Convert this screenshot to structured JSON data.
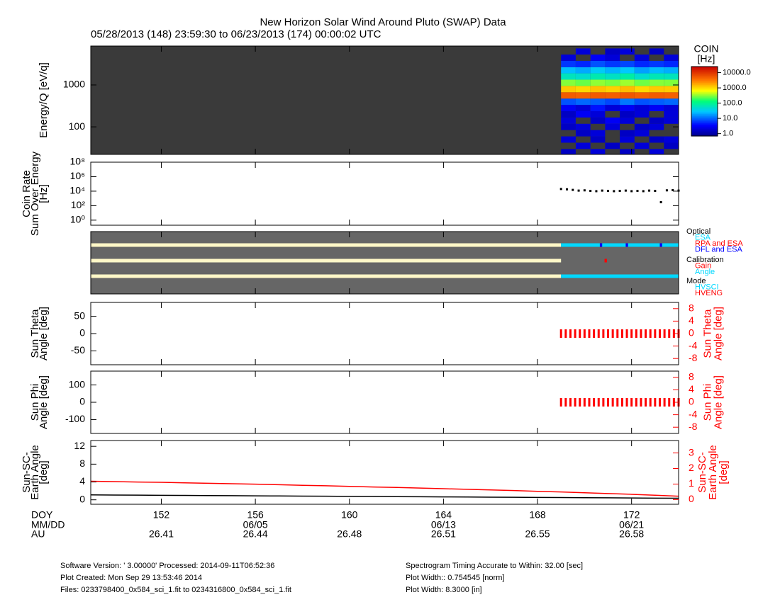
{
  "title": "New Horizon Solar Wind Around Pluto (SWAP) Data",
  "subtitle": "05/28/2013 (148) 23:59:30 to 06/23/2013 (174) 00:00:02 UTC",
  "x_axis": {
    "xlim": [
      149,
      174
    ],
    "xticks": [
      152,
      156,
      160,
      164,
      168,
      172
    ],
    "row_names": [
      "DOY",
      "MM/DD",
      "AU"
    ],
    "dates": [
      null,
      "06/05",
      null,
      "06/13",
      null,
      "06/21"
    ],
    "au": [
      26.41,
      26.44,
      26.48,
      26.51,
      26.55,
      26.58
    ]
  },
  "chart_data": [
    {
      "type": "heatmap",
      "ylabel": [
        "Energy/Q [eV/q]"
      ],
      "ylog": true,
      "ylim": [
        22,
        8500
      ],
      "yticks": [
        100,
        1000
      ],
      "background": "#3a3a3a",
      "x_edges": [
        169,
        169.625,
        170.25,
        170.875,
        171.5,
        172.125,
        172.75,
        173.375,
        174
      ],
      "y": [
        25,
        35,
        50,
        70,
        100,
        140,
        200,
        280,
        400,
        560,
        800,
        1120,
        1600,
        2240,
        3150,
        4500,
        6300
      ],
      "z": [
        [
          1.5,
          null,
          2,
          null,
          1.5,
          2,
          1.5,
          3,
          8,
          5000,
          1200,
          300,
          60,
          25,
          6,
          2,
          null
        ],
        [
          null,
          2,
          null,
          1.5,
          2,
          null,
          3,
          2,
          10,
          4500,
          1000,
          250,
          50,
          20,
          5,
          null,
          2
        ],
        [
          2,
          null,
          1.5,
          2,
          null,
          1.5,
          2,
          4,
          9,
          5200,
          1300,
          320,
          70,
          30,
          8,
          3,
          null
        ],
        [
          null,
          1.5,
          null,
          null,
          2,
          3,
          null,
          2,
          7,
          4800,
          1100,
          280,
          55,
          22,
          6,
          2,
          1.5
        ],
        [
          1.5,
          null,
          2,
          1.5,
          null,
          2,
          1.5,
          3,
          12,
          5500,
          1400,
          350,
          80,
          28,
          7,
          null,
          2
        ],
        [
          null,
          2,
          null,
          2,
          1.5,
          null,
          2,
          2,
          8,
          4700,
          1000,
          260,
          50,
          18,
          5,
          2,
          null
        ],
        [
          2,
          null,
          1.5,
          null,
          2,
          1.5,
          null,
          3,
          9,
          5000,
          1200,
          300,
          65,
          24,
          6,
          null,
          1.5
        ],
        [
          null,
          1.5,
          2,
          null,
          null,
          2,
          2,
          2,
          10,
          4600,
          1150,
          290,
          60,
          21,
          5,
          2,
          null
        ]
      ],
      "colorbar": {
        "title": "COIN",
        "unit": "[Hz]",
        "zlim": [
          0.7,
          25000
        ],
        "ticks": [
          {
            "value": 1,
            "label": "1.0"
          },
          {
            "value": 10,
            "label": "10.0"
          },
          {
            "value": 100,
            "label": "100.0"
          },
          {
            "value": 1000,
            "label": "1000.0"
          },
          {
            "value": 10000,
            "label": "10000.0"
          }
        ]
      }
    },
    {
      "type": "scatter",
      "ylabel": [
        "Coin Rate",
        "Sum Over Energy",
        "[Hz]"
      ],
      "ylog": true,
      "ylim": [
        0.2,
        100000000
      ],
      "yticks": [
        {
          "value": 1,
          "label": "10⁰"
        },
        {
          "value": 100,
          "label": "10²"
        },
        {
          "value": 10000,
          "label": "10⁴"
        },
        {
          "value": 1000000,
          "label": "10⁶"
        },
        {
          "value": 100000000,
          "label": "10⁸"
        }
      ],
      "series": [
        {
          "color": "#000000",
          "x": [
            169,
            169.25,
            169.5,
            169.75,
            170,
            170.25,
            170.5,
            170.75,
            171,
            171.25,
            171.5,
            171.75,
            172,
            172.25,
            172.5,
            172.75,
            173,
            173.25,
            173.5,
            173.75,
            174
          ],
          "values": [
            20000,
            18000,
            15000,
            12000,
            13000,
            11000,
            10000,
            12000,
            11000,
            10000,
            11000,
            12000,
            10000,
            11000,
            10000,
            12000,
            11000,
            300,
            13000,
            14000,
            12000
          ]
        }
      ]
    },
    {
      "type": "status",
      "background": "#666666",
      "nodata": {
        "color": "#fff8c8",
        "segments": [
          [
            149,
            169
          ]
        ]
      },
      "groups": [
        {
          "name": "Optical",
          "items": [
            {
              "name": "ESA",
              "color": "#00d8ff",
              "segments": [
                [
                  169,
                  174
                ]
              ]
            },
            {
              "name": "RPA and ESA",
              "color": "#ff0000",
              "segments": []
            },
            {
              "name": "DFL and ESA",
              "color": "#0000ff",
              "segments": [
                [
                  170.65,
                  170.75
                ],
                [
                  171.75,
                  171.85
                ],
                [
                  173.2,
                  173.3
                ]
              ]
            }
          ]
        },
        {
          "name": "Calibration",
          "items": [
            {
              "name": "Gain",
              "color": "#ff0000",
              "segments": [
                [
                  170.85,
                  170.95
                ]
              ]
            },
            {
              "name": "Angle",
              "color": "#00d8ff",
              "segments": []
            }
          ]
        },
        {
          "name": "Mode",
          "items": [
            {
              "name": "HVSCI",
              "color": "#00d8ff",
              "segments": [
                [
                  169,
                  174
                ]
              ]
            },
            {
              "name": "HVENG",
              "color": "#ff0000",
              "segments": []
            }
          ]
        }
      ]
    },
    {
      "type": "scatter",
      "ylabel": [
        "Sun Theta",
        "Angle [deg]"
      ],
      "y2label": [
        "Sun Theta",
        "Angle [deg]"
      ],
      "ylim": [
        -90,
        90
      ],
      "yticks": [
        -50,
        0,
        50
      ],
      "y2lim": [
        -10,
        10
      ],
      "y2ticks": [
        -8,
        -4,
        0,
        4,
        8
      ],
      "y2color": "#ff0000",
      "series": [
        {
          "color": "#ff0000",
          "axis": "y2",
          "x": [
            169,
            169.2,
            169.4,
            169.6,
            169.8,
            170,
            170.2,
            170.4,
            170.6,
            170.8,
            171,
            171.2,
            171.4,
            171.6,
            171.8,
            172,
            172.2,
            172.4,
            172.6,
            172.8,
            173,
            173.2,
            173.4,
            173.6,
            173.8,
            174
          ],
          "values": [
            0,
            0,
            0,
            0,
            0,
            0,
            0,
            0,
            0,
            0,
            0,
            0,
            0,
            0,
            0,
            0,
            0,
            0,
            0,
            0,
            0,
            0,
            0,
            0,
            0,
            0
          ]
        }
      ]
    },
    {
      "type": "scatter",
      "ylabel": [
        "Sun Phi",
        "Angle [deg]"
      ],
      "y2label": [
        "Sun Phi",
        "Angle [deg]"
      ],
      "ylim": [
        -180,
        180
      ],
      "yticks": [
        -100,
        0,
        100
      ],
      "y2lim": [
        -10,
        10
      ],
      "y2ticks": [
        -8,
        -4,
        0,
        4,
        8
      ],
      "y2color": "#ff0000",
      "series": [
        {
          "color": "#ff0000",
          "axis": "y2",
          "x": [
            169,
            169.2,
            169.4,
            169.6,
            169.8,
            170,
            170.2,
            170.4,
            170.6,
            170.8,
            171,
            171.2,
            171.4,
            171.6,
            171.8,
            172,
            172.2,
            172.4,
            172.6,
            172.8,
            173,
            173.2,
            173.4,
            173.6,
            173.8,
            174
          ],
          "values": [
            0,
            0,
            0,
            0,
            0,
            0,
            0,
            0,
            0,
            0,
            0,
            0,
            0,
            0,
            0,
            0,
            0,
            0,
            0,
            0,
            0,
            0,
            0,
            0,
            0,
            0
          ]
        }
      ]
    },
    {
      "type": "line",
      "ylabel": [
        "Sun-SC-",
        "Earth Angle",
        "[deg]"
      ],
      "y2label": [
        "Sun-SC-",
        "Earth Angle",
        "[deg]"
      ],
      "ylim": [
        -1,
        13.3
      ],
      "yticks": [
        0,
        4,
        8,
        12
      ],
      "y2lim": [
        -0.3,
        3.8
      ],
      "y2ticks": [
        0,
        1,
        2,
        3
      ],
      "y2color": "#ff0000",
      "x": [
        149,
        150,
        151,
        152,
        153,
        154,
        155,
        156,
        157,
        158,
        159,
        160,
        161,
        162,
        163,
        164,
        165,
        166,
        167,
        168,
        169,
        170,
        171,
        172,
        173,
        174
      ],
      "series": [
        {
          "color": "#000000",
          "values": [
            1.1,
            1.07,
            1.04,
            1.01,
            0.98,
            0.95,
            0.92,
            0.89,
            0.86,
            0.83,
            0.8,
            0.77,
            0.74,
            0.71,
            0.68,
            0.65,
            0.62,
            0.59,
            0.56,
            0.53,
            0.5,
            0.47,
            0.44,
            0.41,
            0.38,
            0.35
          ]
        },
        {
          "color": "#ff0000",
          "axis": "y2",
          "values": [
            1.18,
            1.16,
            1.13,
            1.11,
            1.08,
            1.05,
            1.02,
            0.99,
            0.96,
            0.92,
            0.89,
            0.85,
            0.81,
            0.78,
            0.74,
            0.7,
            0.66,
            0.62,
            0.58,
            0.53,
            0.49,
            0.44,
            0.39,
            0.34,
            0.28,
            0.22
          ]
        }
      ]
    }
  ],
  "footer": {
    "left": [
      "Software Version:  ' 3.00000'  Processed: 2014-09-11T06:52:36",
      "Plot Created: Mon Sep 29 13:53:46 2014",
      "Files: 0233798400_0x584_sci_1.fit to 0234316800_0x584_sci_1.fit"
    ],
    "right": [
      "Spectrogram Timing Accurate to Within: 32.00 [sec]",
      "Plot Width:: 0.754545 [norm]",
      "Plot Width: 8.3000 [in]"
    ]
  }
}
